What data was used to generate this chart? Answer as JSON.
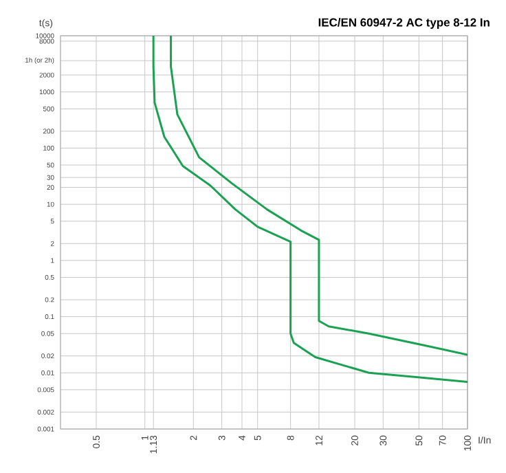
{
  "chart_data": {
    "type": "line",
    "title": "IEC/EN 60947-2 AC type 8-12 In",
    "xlabel": "I/In",
    "ylabel": "t(s)",
    "xlim": [
      0.3,
      100
    ],
    "ylim": [
      0.001,
      10000
    ],
    "xticks": [
      0.5,
      1,
      {
        "value": 1.13,
        "label": "1.13"
      },
      2,
      3,
      4,
      5,
      8,
      12,
      20,
      30,
      50,
      70,
      100
    ],
    "yticks": [
      0.001,
      0.002,
      0.005,
      0.01,
      0.02,
      0.05,
      0.1,
      0.2,
      0.5,
      1,
      2,
      5,
      10,
      20,
      30,
      50,
      100,
      200,
      500,
      1000,
      2000,
      {
        "value": 3600,
        "label": "1h (or 2h)"
      },
      8000,
      10000
    ],
    "grid": true,
    "log": "xy",
    "series": [
      {
        "color": "#1aa152",
        "x": [
          1.13,
          1.13,
          1.15,
          1.32,
          1.72,
          2.55,
          3.64,
          5,
          8,
          8,
          8.38,
          11.4,
          24.5,
          50.8,
          100
        ],
        "values": [
          10000,
          2820,
          644,
          159,
          48,
          21.5,
          8.1,
          3.98,
          2.16,
          0.05,
          0.034,
          0.019,
          0.01,
          0.0083,
          0.0069
        ]
      },
      {
        "color": "#1aa152",
        "x": [
          1.45,
          1.45,
          1.59,
          2.17,
          3.46,
          5.72,
          9.3,
          12,
          12,
          13.8,
          24.5,
          50.8,
          100
        ],
        "values": [
          10000,
          2820,
          398,
          68.6,
          23.6,
          8.1,
          3.41,
          2.33,
          0.084,
          0.067,
          0.05,
          0.032,
          0.021
        ]
      }
    ]
  }
}
